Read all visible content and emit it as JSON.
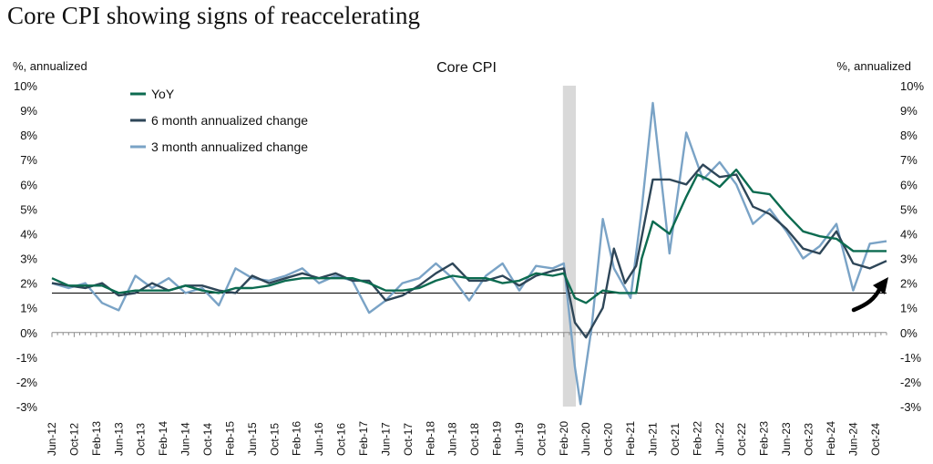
{
  "headline": "Core CPI showing signs of reaccelerating",
  "chart_data": {
    "type": "line",
    "title": "Core CPI",
    "ylabel_left": "%, annualized",
    "ylabel_right": "%, annualized",
    "ylim": [
      -3,
      10
    ],
    "yticks": [
      "-3%",
      "-2%",
      "-1%",
      "0%",
      "1%",
      "2%",
      "3%",
      "4%",
      "5%",
      "6%",
      "7%",
      "8%",
      "9%",
      "10%"
    ],
    "x_start": "Jun-12",
    "x_end": "Dec-24",
    "x_tick_labels": [
      "Jun-12",
      "Oct-12",
      "Feb-13",
      "Jun-13",
      "Oct-13",
      "Feb-14",
      "Jun-14",
      "Oct-14",
      "Feb-15",
      "Jun-15",
      "Oct-15",
      "Feb-16",
      "Jun-16",
      "Oct-16",
      "Feb-17",
      "Jun-17",
      "Oct-17",
      "Feb-18",
      "Jun-18",
      "Oct-18",
      "Feb-19",
      "Jun-19",
      "Oct-19",
      "Feb-20",
      "Jun-20",
      "Oct-20",
      "Feb-21",
      "Jun-21",
      "Oct-21",
      "Feb-22",
      "Jun-22",
      "Oct-22",
      "Feb-23",
      "Jun-23",
      "Oct-23",
      "Feb-24",
      "Jun-24",
      "Oct-24"
    ],
    "reference_line": 1.6,
    "recession_shading": {
      "from": "Feb-20",
      "to": "Apr-20"
    },
    "legend_position": "top-left",
    "annotation": "upward arrow near Oct-24",
    "series": [
      {
        "name": "YoY",
        "color": "#0c6b50",
        "anchors": [
          [
            "Jun-12",
            2.2
          ],
          [
            "Sep-12",
            1.9
          ],
          [
            "Dec-12",
            1.9
          ],
          [
            "Mar-13",
            1.9
          ],
          [
            "Jun-13",
            1.6
          ],
          [
            "Sep-13",
            1.7
          ],
          [
            "Dec-13",
            1.7
          ],
          [
            "Mar-14",
            1.7
          ],
          [
            "Jun-14",
            1.9
          ],
          [
            "Sep-14",
            1.7
          ],
          [
            "Dec-14",
            1.6
          ],
          [
            "Mar-15",
            1.8
          ],
          [
            "Jun-15",
            1.8
          ],
          [
            "Sep-15",
            1.9
          ],
          [
            "Dec-15",
            2.1
          ],
          [
            "Mar-16",
            2.2
          ],
          [
            "Jun-16",
            2.2
          ],
          [
            "Sep-16",
            2.2
          ],
          [
            "Dec-16",
            2.2
          ],
          [
            "Mar-17",
            2.0
          ],
          [
            "Jun-17",
            1.7
          ],
          [
            "Sep-17",
            1.7
          ],
          [
            "Dec-17",
            1.8
          ],
          [
            "Mar-18",
            2.1
          ],
          [
            "Jun-18",
            2.3
          ],
          [
            "Sep-18",
            2.2
          ],
          [
            "Dec-18",
            2.2
          ],
          [
            "Mar-19",
            2.0
          ],
          [
            "Jun-19",
            2.1
          ],
          [
            "Sep-19",
            2.4
          ],
          [
            "Dec-19",
            2.3
          ],
          [
            "Feb-20",
            2.4
          ],
          [
            "Apr-20",
            1.4
          ],
          [
            "Jun-20",
            1.2
          ],
          [
            "Sep-20",
            1.7
          ],
          [
            "Dec-20",
            1.6
          ],
          [
            "Mar-21",
            1.6
          ],
          [
            "Apr-21",
            3.0
          ],
          [
            "Jun-21",
            4.5
          ],
          [
            "Sep-21",
            4.0
          ],
          [
            "Dec-21",
            5.5
          ],
          [
            "Feb-22",
            6.4
          ],
          [
            "Apr-22",
            6.2
          ],
          [
            "Jun-22",
            5.9
          ],
          [
            "Sep-22",
            6.6
          ],
          [
            "Dec-22",
            5.7
          ],
          [
            "Mar-23",
            5.6
          ],
          [
            "Jun-23",
            4.8
          ],
          [
            "Sep-23",
            4.1
          ],
          [
            "Dec-23",
            3.9
          ],
          [
            "Mar-24",
            3.8
          ],
          [
            "Jun-24",
            3.3
          ],
          [
            "Sep-24",
            3.3
          ],
          [
            "Dec-24",
            3.3
          ]
        ]
      },
      {
        "name": "6 month annualized change",
        "color": "#2e4658",
        "anchors": [
          [
            "Jun-12",
            2.0
          ],
          [
            "Sep-12",
            1.9
          ],
          [
            "Dec-12",
            1.8
          ],
          [
            "Mar-13",
            2.0
          ],
          [
            "Jun-13",
            1.5
          ],
          [
            "Sep-13",
            1.6
          ],
          [
            "Dec-13",
            2.0
          ],
          [
            "Mar-14",
            1.7
          ],
          [
            "Jun-14",
            1.9
          ],
          [
            "Sep-14",
            1.9
          ],
          [
            "Dec-14",
            1.7
          ],
          [
            "Mar-15",
            1.6
          ],
          [
            "Jun-15",
            2.3
          ],
          [
            "Sep-15",
            2.0
          ],
          [
            "Dec-15",
            2.2
          ],
          [
            "Mar-16",
            2.4
          ],
          [
            "Jun-16",
            2.2
          ],
          [
            "Sep-16",
            2.4
          ],
          [
            "Dec-16",
            2.1
          ],
          [
            "Mar-17",
            2.1
          ],
          [
            "Jun-17",
            1.3
          ],
          [
            "Sep-17",
            1.5
          ],
          [
            "Dec-17",
            1.9
          ],
          [
            "Mar-18",
            2.4
          ],
          [
            "Jun-18",
            2.8
          ],
          [
            "Sep-18",
            2.1
          ],
          [
            "Dec-18",
            2.1
          ],
          [
            "Mar-19",
            2.3
          ],
          [
            "Jun-19",
            1.9
          ],
          [
            "Sep-19",
            2.3
          ],
          [
            "Dec-19",
            2.5
          ],
          [
            "Feb-20",
            2.6
          ],
          [
            "Apr-20",
            0.4
          ],
          [
            "Jun-20",
            -0.2
          ],
          [
            "Sep-20",
            1.0
          ],
          [
            "Nov-20",
            3.4
          ],
          [
            "Jan-21",
            2.0
          ],
          [
            "Mar-21",
            2.7
          ],
          [
            "Jun-21",
            6.2
          ],
          [
            "Sep-21",
            6.2
          ],
          [
            "Dec-21",
            6.0
          ],
          [
            "Mar-22",
            6.8
          ],
          [
            "Jun-22",
            6.3
          ],
          [
            "Sep-22",
            6.4
          ],
          [
            "Dec-22",
            5.1
          ],
          [
            "Mar-23",
            4.8
          ],
          [
            "Jun-23",
            4.2
          ],
          [
            "Sep-23",
            3.4
          ],
          [
            "Dec-23",
            3.2
          ],
          [
            "Mar-24",
            4.1
          ],
          [
            "Jun-24",
            2.8
          ],
          [
            "Sep-24",
            2.6
          ],
          [
            "Dec-24",
            2.9
          ]
        ]
      },
      {
        "name": "3 month annualized change",
        "color": "#7aa3c6",
        "anchors": [
          [
            "Jun-12",
            2.0
          ],
          [
            "Sep-12",
            1.8
          ],
          [
            "Dec-12",
            2.0
          ],
          [
            "Mar-13",
            1.2
          ],
          [
            "Jun-13",
            0.9
          ],
          [
            "Sep-13",
            2.3
          ],
          [
            "Dec-13",
            1.8
          ],
          [
            "Mar-14",
            2.2
          ],
          [
            "Jun-14",
            1.6
          ],
          [
            "Sep-14",
            1.8
          ],
          [
            "Dec-14",
            1.1
          ],
          [
            "Mar-15",
            2.6
          ],
          [
            "Jun-15",
            2.2
          ],
          [
            "Sep-15",
            2.1
          ],
          [
            "Dec-15",
            2.3
          ],
          [
            "Mar-16",
            2.6
          ],
          [
            "Jun-16",
            2.0
          ],
          [
            "Sep-16",
            2.3
          ],
          [
            "Dec-16",
            2.1
          ],
          [
            "Mar-17",
            0.8
          ],
          [
            "Jun-17",
            1.3
          ],
          [
            "Sep-17",
            2.0
          ],
          [
            "Dec-17",
            2.2
          ],
          [
            "Mar-18",
            2.8
          ],
          [
            "Jun-18",
            2.2
          ],
          [
            "Sep-18",
            1.3
          ],
          [
            "Dec-18",
            2.3
          ],
          [
            "Mar-19",
            2.8
          ],
          [
            "Jun-19",
            1.7
          ],
          [
            "Sep-19",
            2.7
          ],
          [
            "Dec-19",
            2.6
          ],
          [
            "Feb-20",
            2.8
          ],
          [
            "Apr-20",
            -1.4
          ],
          [
            "May-20",
            -2.9
          ],
          [
            "Jul-20",
            0.2
          ],
          [
            "Sep-20",
            4.6
          ],
          [
            "Nov-20",
            2.6
          ],
          [
            "Feb-21",
            1.4
          ],
          [
            "Apr-21",
            5.0
          ],
          [
            "Jun-21",
            9.3
          ],
          [
            "Sep-21",
            3.2
          ],
          [
            "Dec-21",
            8.1
          ],
          [
            "Mar-22",
            6.2
          ],
          [
            "Jun-22",
            6.9
          ],
          [
            "Sep-22",
            6.0
          ],
          [
            "Dec-22",
            4.4
          ],
          [
            "Mar-23",
            5.0
          ],
          [
            "Jun-23",
            4.1
          ],
          [
            "Sep-23",
            3.0
          ],
          [
            "Dec-23",
            3.5
          ],
          [
            "Mar-24",
            4.4
          ],
          [
            "Jun-24",
            1.7
          ],
          [
            "Sep-24",
            3.6
          ],
          [
            "Dec-24",
            3.7
          ]
        ]
      }
    ]
  }
}
